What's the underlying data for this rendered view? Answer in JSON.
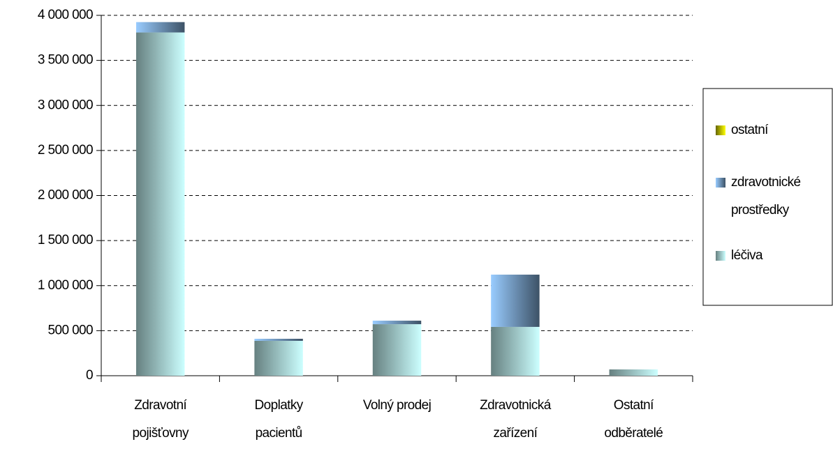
{
  "chart_data": {
    "type": "stacked_bar",
    "categories": [
      "Zdravotní\npojišťovny",
      "Doplatky\npacientů",
      "Volný prodej",
      "Zdravotnická\nzařízení",
      "Ostatní\nodběratelé"
    ],
    "series": [
      {
        "name": "léčiva",
        "color": "#ccffff",
        "values": [
          3810000,
          387000,
          572000,
          542000,
          70000
        ]
      },
      {
        "name": "zdravotnické\nprostředky",
        "color": "#99ccff",
        "values": [
          115000,
          23000,
          39000,
          580000,
          0
        ]
      },
      {
        "name": "ostatní",
        "color": "#ffff00",
        "values": [
          0,
          0,
          0,
          0,
          0
        ]
      }
    ],
    "ylim": [
      0,
      4000000
    ],
    "yticks": [
      0,
      {
        "value": 500000,
        "label": "500 000"
      },
      {
        "value": 1000000,
        "label": "1 000 000"
      },
      {
        "value": 1500000,
        "label": "1 500 000"
      },
      {
        "value": 2000000,
        "label": "2 000 000"
      },
      {
        "value": 2500000,
        "label": "2 500 000"
      },
      {
        "value": 3000000,
        "label": "3 000 000"
      },
      {
        "value": 3500000,
        "label": "3 500 000"
      },
      {
        "value": 4000000,
        "label": "4 000 000"
      }
    ],
    "grid": true,
    "legend": "right"
  }
}
